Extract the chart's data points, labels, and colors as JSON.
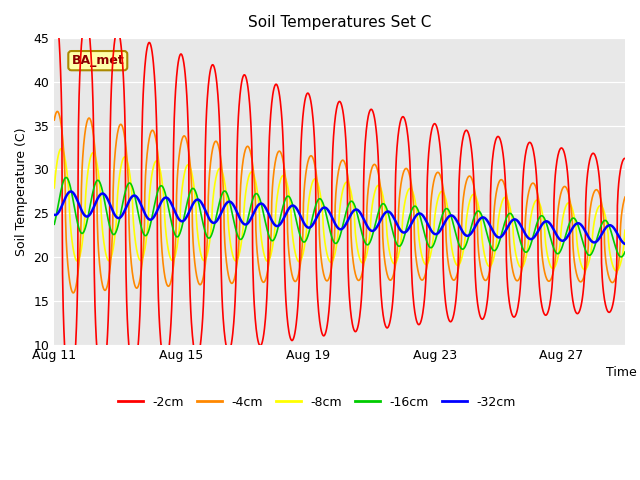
{
  "title": "Soil Temperatures Set C",
  "xlabel": "Time",
  "ylabel": "Soil Temperature (C)",
  "ylim": [
    10,
    45
  ],
  "yticks": [
    10,
    15,
    20,
    25,
    30,
    35,
    40,
    45
  ],
  "xtick_labels": [
    "Aug 11",
    "Aug 15",
    "Aug 19",
    "Aug 23",
    "Aug 27"
  ],
  "xtick_days": [
    0,
    4,
    8,
    12,
    16
  ],
  "annotation_text": "BA_met",
  "plot_bg_color": "#e8e8e8",
  "legend_entries": [
    "-2cm",
    "-4cm",
    "-8cm",
    "-16cm",
    "-32cm"
  ],
  "line_colors": [
    "#ff0000",
    "#ff8800",
    "#ffff00",
    "#00cc00",
    "#0000ff"
  ],
  "line_widths": [
    1.2,
    1.2,
    1.2,
    1.2,
    1.8
  ],
  "total_days": 18,
  "pts_per_day": 96
}
